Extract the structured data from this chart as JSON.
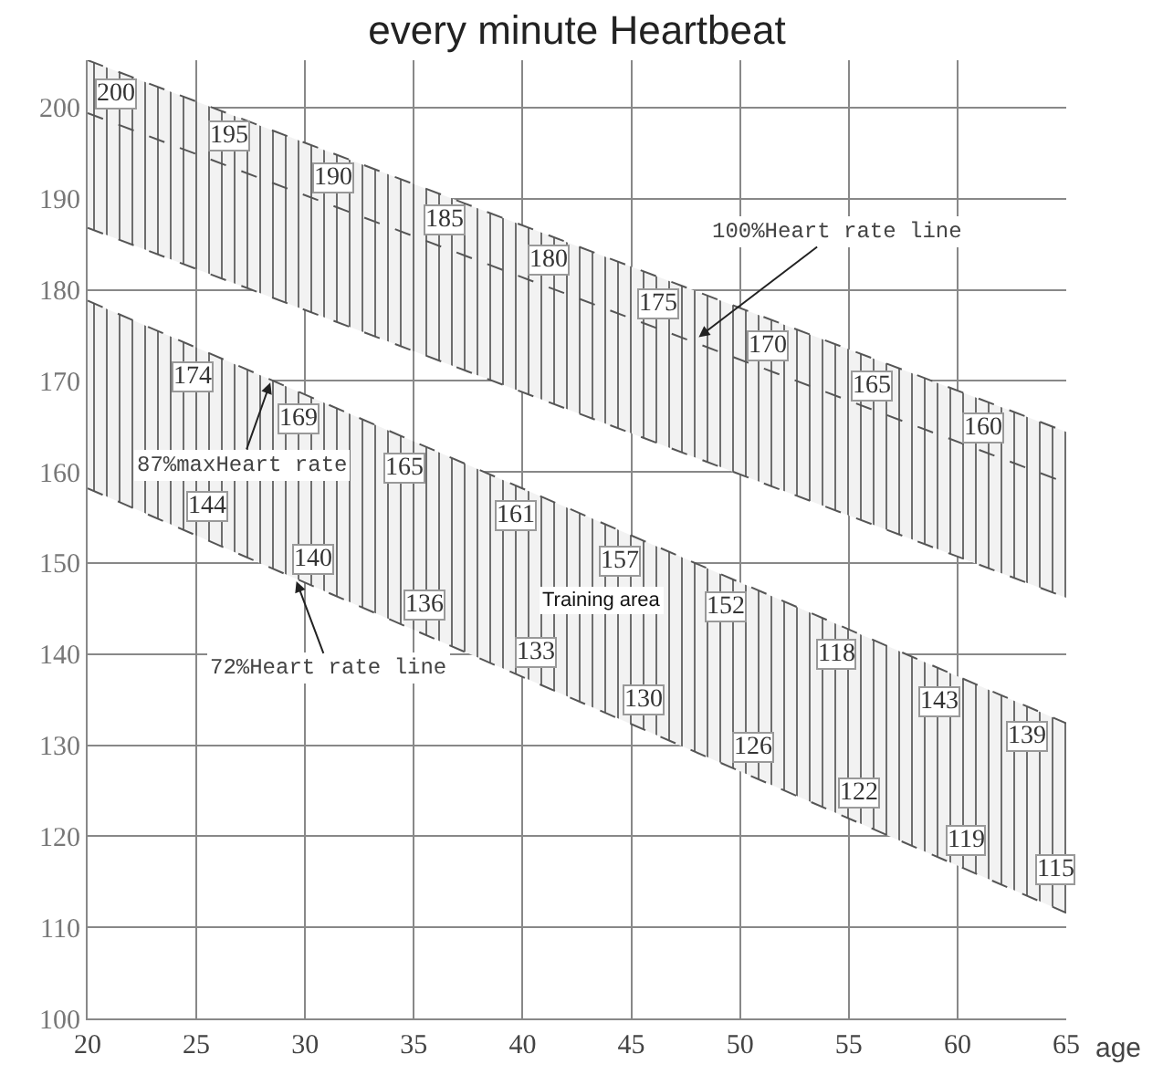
{
  "chart_data": {
    "type": "line",
    "title": "every minute Heartbeat",
    "xlabel": "age",
    "x": [
      20,
      65
    ],
    "series": [
      {
        "type": "line",
        "color": "#555555",
        "values": [
          186.8,
          146.2
        ]
      },
      {
        "type": "area",
        "color": "#555555",
        "values": [
          205.2,
          164.4
        ]
      },
      {
        "type": "line",
        "color": "#555555",
        "values": [
          199.4,
          158.8
        ],
        "line_style": "dashed"
      },
      {
        "type": "line",
        "color": "#555555",
        "values": [
          158.2,
          111.6
        ]
      },
      {
        "type": "area",
        "color": "#555555",
        "values": [
          178.8,
          132.4
        ]
      }
    ],
    "xlim": [
      20,
      65
    ],
    "ylim": [
      100,
      205.2
    ],
    "xticks": [
      20,
      25,
      30,
      35,
      40,
      45,
      50,
      55,
      60,
      65
    ],
    "yticks": [
      100,
      110,
      120,
      130,
      140,
      150,
      160,
      170,
      180,
      190,
      200
    ],
    "grid": true,
    "marker": "none",
    "line_style": "dashed",
    "annotations": [
      {
        "text": "100%Heart rate line",
        "x": 48.1,
        "y": 174.8
      },
      {
        "text": "87%maxHeart rate",
        "x": 28.4,
        "y": 169.8
      },
      {
        "text": "72%Heart rate line",
        "x": 29.6,
        "y": 148
      },
      "Training area",
      {
        "text": "200",
        "x": 21.3,
        "y": 201.4
      },
      {
        "text": "195",
        "x": 26.5,
        "y": 196.8
      },
      {
        "text": "190",
        "x": 31.3,
        "y": 192.2
      },
      {
        "text": "185",
        "x": 36.4,
        "y": 187.6
      },
      {
        "text": "180",
        "x": 41.2,
        "y": 183.2
      },
      {
        "text": "175",
        "x": 46.2,
        "y": 178.4
      },
      {
        "text": "170",
        "x": 51.3,
        "y": 173.8
      },
      {
        "text": "165",
        "x": 56.1,
        "y": 169.4
      },
      {
        "text": "160",
        "x": 61.2,
        "y": 164.8
      },
      {
        "text": "174",
        "x": 24.8,
        "y": 170.4
      },
      {
        "text": "169",
        "x": 29.7,
        "y": 165.8
      },
      {
        "text": "165",
        "x": 34.6,
        "y": 160.4
      },
      {
        "text": "161",
        "x": 39.7,
        "y": 155.2
      },
      {
        "text": "157",
        "x": 44.5,
        "y": 150.2
      },
      {
        "text": "152",
        "x": 49.3,
        "y": 145.2
      },
      {
        "text": "118",
        "x": 54.4,
        "y": 140
      },
      {
        "text": "143",
        "x": 59.2,
        "y": 134.8
      },
      {
        "text": "139",
        "x": 63.2,
        "y": 131
      },
      {
        "text": "144",
        "x": 25.5,
        "y": 156.2
      },
      {
        "text": "140",
        "x": 30.4,
        "y": 150.4
      },
      {
        "text": "136",
        "x": 35.5,
        "y": 145.4
      },
      {
        "text": "133",
        "x": 40.6,
        "y": 140.2
      },
      {
        "text": "130",
        "x": 45.6,
        "y": 135
      },
      {
        "text": "126",
        "x": 50.6,
        "y": 129.8
      },
      {
        "text": "122",
        "x": 55.5,
        "y": 124.8
      },
      {
        "text": "119",
        "x": 60.4,
        "y": 119.6
      },
      {
        "text": "115",
        "x": 64.5,
        "y": 116.4
      }
    ]
  }
}
